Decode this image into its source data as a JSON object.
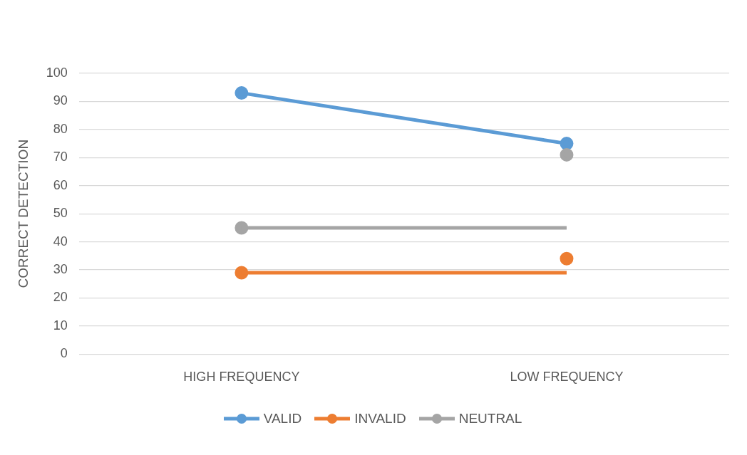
{
  "chart_data": {
    "type": "line",
    "ylabel": "CORRECT DETECTION",
    "categories": [
      "HIGH FREQUENCY",
      "LOW FREQUENCY"
    ],
    "ylim": [
      0,
      100
    ],
    "yticks": [
      0,
      10,
      20,
      30,
      40,
      50,
      60,
      70,
      80,
      90,
      100
    ],
    "grid": "y",
    "legend": "bottom",
    "series": [
      {
        "name": "VALID",
        "color": "#5b9bd5",
        "values": [
          93,
          75
        ],
        "marker": "circle"
      },
      {
        "name": "INVALID",
        "type": "scatter",
        "color": "#ed7d31",
        "values": [
          29,
          34
        ],
        "marker": "circle"
      },
      {
        "name": "NEUTRAL",
        "type": "scatter",
        "color": "#a5a5a5",
        "values": [
          45,
          71
        ],
        "marker": "circle"
      },
      {
        "color": "#ed7d31",
        "values": [
          29,
          29
        ],
        "marker": "none"
      },
      {
        "color": "#a5a5a5",
        "values": [
          45,
          45
        ],
        "marker": "none"
      }
    ]
  }
}
